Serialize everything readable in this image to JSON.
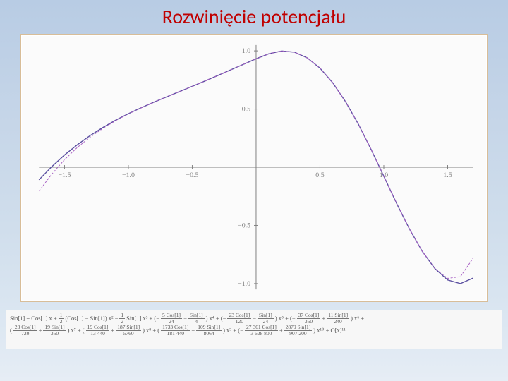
{
  "title": "Rozwinięcie potencjału",
  "slide": {
    "background_gradient": [
      "#b8cce4",
      "#c5d5e8",
      "#d0deec",
      "#dce7f2",
      "#e6edf5"
    ]
  },
  "chart": {
    "type": "line",
    "frame": {
      "border_color": "#d8bd98",
      "background": "#fbfbfb"
    },
    "xlim": [
      -1.7,
      1.7
    ],
    "ylim": [
      -1.05,
      1.05
    ],
    "xticks": [
      -1.5,
      -1.0,
      -0.5,
      0.5,
      1.0,
      1.5
    ],
    "yticks": [
      -1.0,
      -0.5,
      0.5,
      1.0
    ],
    "xtick_labels": [
      "−1.5",
      "−1.0",
      "−0.5",
      "0.5",
      "1.0",
      "1.5"
    ],
    "ytick_labels": [
      "−1.0",
      "−0.5",
      "0.5",
      "1.0"
    ],
    "axis_color": "#808080",
    "tick_label_color": "#808080",
    "tick_fontsize": 10,
    "series": [
      {
        "name": "f",
        "color": "#5a4fa0",
        "width": 1.4,
        "dash": null,
        "x": [
          -1.7,
          -1.6,
          -1.5,
          -1.4,
          -1.3,
          -1.2,
          -1.1,
          -1.0,
          -0.9,
          -0.8,
          -0.7,
          -0.6,
          -0.5,
          -0.4,
          -0.3,
          -0.2,
          -0.1,
          0.0,
          0.1,
          0.2,
          0.3,
          0.4,
          0.5,
          0.6,
          0.7,
          0.8,
          0.9,
          1.0,
          1.1,
          1.2,
          1.3,
          1.4,
          1.5,
          1.6,
          1.7
        ],
        "y": [
          -0.108,
          0.005,
          0.105,
          0.193,
          0.272,
          0.341,
          0.404,
          0.46,
          0.511,
          0.559,
          0.605,
          0.65,
          0.695,
          0.741,
          0.788,
          0.836,
          0.884,
          0.932,
          0.975,
          0.999,
          0.989,
          0.94,
          0.852,
          0.726,
          0.564,
          0.372,
          0.154,
          -0.077,
          -0.31,
          -0.529,
          -0.721,
          -0.871,
          -0.969,
          -1.0,
          -0.952
        ]
      },
      {
        "name": "taylor",
        "color": "#a860c4",
        "width": 1.0,
        "dash": "3,2",
        "x": [
          -1.7,
          -1.6,
          -1.5,
          -1.4,
          -1.3,
          -1.2,
          -1.1,
          -1.0,
          -0.9,
          -0.8,
          -0.7,
          -0.6,
          -0.5,
          -0.4,
          -0.3,
          -0.2,
          -0.1,
          0.0,
          0.1,
          0.2,
          0.3,
          0.4,
          0.5,
          0.6,
          0.7,
          0.8,
          0.9,
          1.0,
          1.1,
          1.2,
          1.3,
          1.4,
          1.5,
          1.6,
          1.7
        ],
        "y": [
          -0.205,
          -0.06,
          0.065,
          0.17,
          0.258,
          0.333,
          0.4,
          0.458,
          0.51,
          0.559,
          0.605,
          0.65,
          0.695,
          0.741,
          0.788,
          0.836,
          0.884,
          0.932,
          0.975,
          0.999,
          0.989,
          0.94,
          0.852,
          0.726,
          0.564,
          0.372,
          0.154,
          -0.077,
          -0.31,
          -0.529,
          -0.721,
          -0.869,
          -0.955,
          -0.94,
          -0.78
        ]
      }
    ]
  },
  "formula": {
    "background": "#f7f7f7",
    "text_color": "#555555",
    "fontsize": 8.5,
    "line1_terms": [
      {
        "plain": "Sin[1] + Cos[1] x +"
      },
      {
        "num": "1",
        "den": "2"
      },
      {
        "plain": "(Cos[1] − Sin[1]) x² −"
      },
      {
        "num": "1",
        "den": "2"
      },
      {
        "plain": "Sin[1] x³ + (−"
      },
      {
        "num": "5 Cos[1]",
        "den": "24"
      },
      {
        "plain": "−"
      },
      {
        "num": "Sin[1]",
        "den": "4"
      },
      {
        "plain": ") x⁴ + (−"
      },
      {
        "num": "23 Cos[1]",
        "den": "120"
      },
      {
        "plain": "−"
      },
      {
        "num": "Sin[1]",
        "den": "24"
      },
      {
        "plain": ") x⁵ + (−"
      },
      {
        "num": "37 Cos[1]",
        "den": "360"
      },
      {
        "plain": "+"
      },
      {
        "num": "11 Sin[1]",
        "den": "240"
      },
      {
        "plain": ") x⁶ +"
      }
    ],
    "line2_terms": [
      {
        "plain": "("
      },
      {
        "num": "23 Cos[1]",
        "den": "720"
      },
      {
        "plain": "+"
      },
      {
        "num": "19 Sin[1]",
        "den": "360"
      },
      {
        "plain": ") x⁷ + ("
      },
      {
        "num": "19 Cos[1]",
        "den": "13 440"
      },
      {
        "plain": "+"
      },
      {
        "num": "187 Sin[1]",
        "den": "5760"
      },
      {
        "plain": ") x⁸ + ("
      },
      {
        "num": "1733 Cos[1]",
        "den": "181 440"
      },
      {
        "plain": "+"
      },
      {
        "num": "109 Sin[1]",
        "den": "8064"
      },
      {
        "plain": ") x⁹ + (−"
      },
      {
        "num": "27 361 Cos[1]",
        "den": "3 628 800"
      },
      {
        "plain": "+"
      },
      {
        "num": "2879 Sin[1]",
        "den": "907 200"
      },
      {
        "plain": ") x¹⁰ + O[x]¹¹"
      }
    ]
  }
}
